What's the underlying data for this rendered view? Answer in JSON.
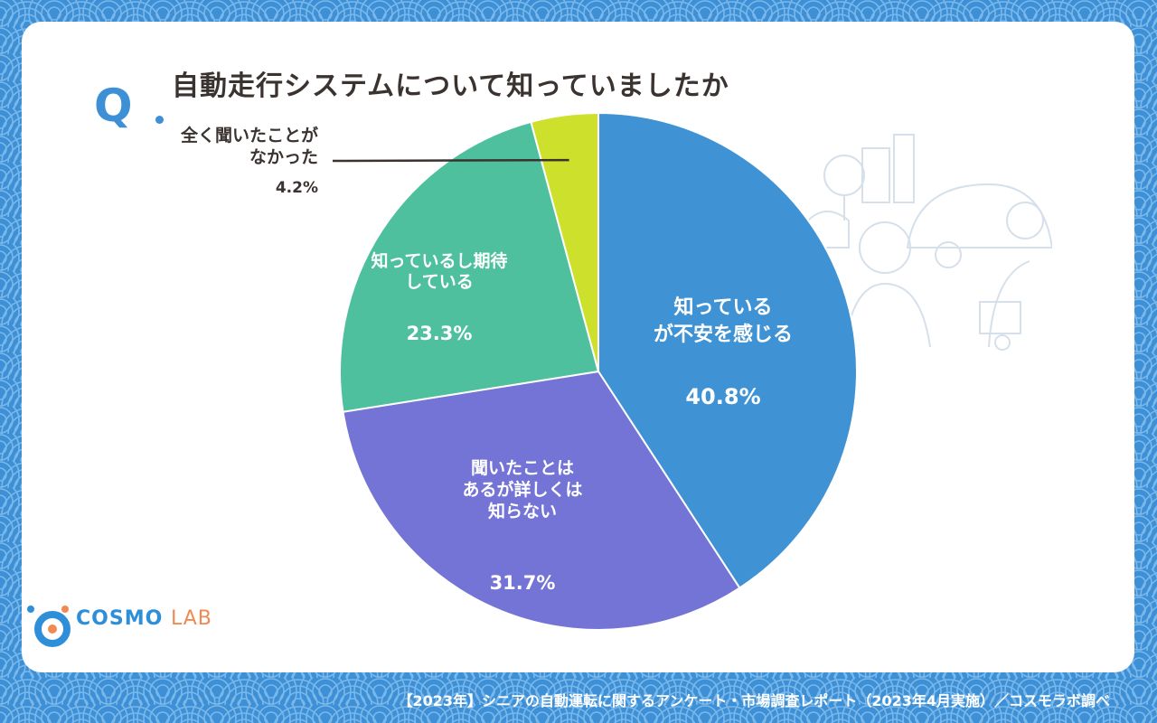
{
  "header": {
    "q_mark": "Q",
    "title": "自動走行システムについて知っていましたか"
  },
  "chart_data": {
    "type": "pie",
    "slices": [
      {
        "label_lines": [
          "知っている",
          "が不安を感じる"
        ],
        "value": 40.8,
        "value_label": "40.8%",
        "color": "#3f93d4"
      },
      {
        "label_lines": [
          "聞いたことは",
          "あるが詳しくは",
          "知らない"
        ],
        "value": 31.7,
        "value_label": "31.7%",
        "color": "#7474d6"
      },
      {
        "label_lines": [
          "知っているし期待",
          "している"
        ],
        "value": 23.3,
        "value_label": "23.3%",
        "color": "#4fc09d"
      },
      {
        "label_lines": [
          "全く聞いたことが",
          "なかった"
        ],
        "value": 4.2,
        "value_label": "4.2%",
        "color": "#cde12c"
      }
    ]
  },
  "logo": {
    "name_main": "COSMO",
    "name_sub": "LAB"
  },
  "footer": {
    "source": "【2023年】シニアの自動運転に関するアンケート・市場調査レポート（2023年4月実施）／コスモラボ調べ"
  }
}
